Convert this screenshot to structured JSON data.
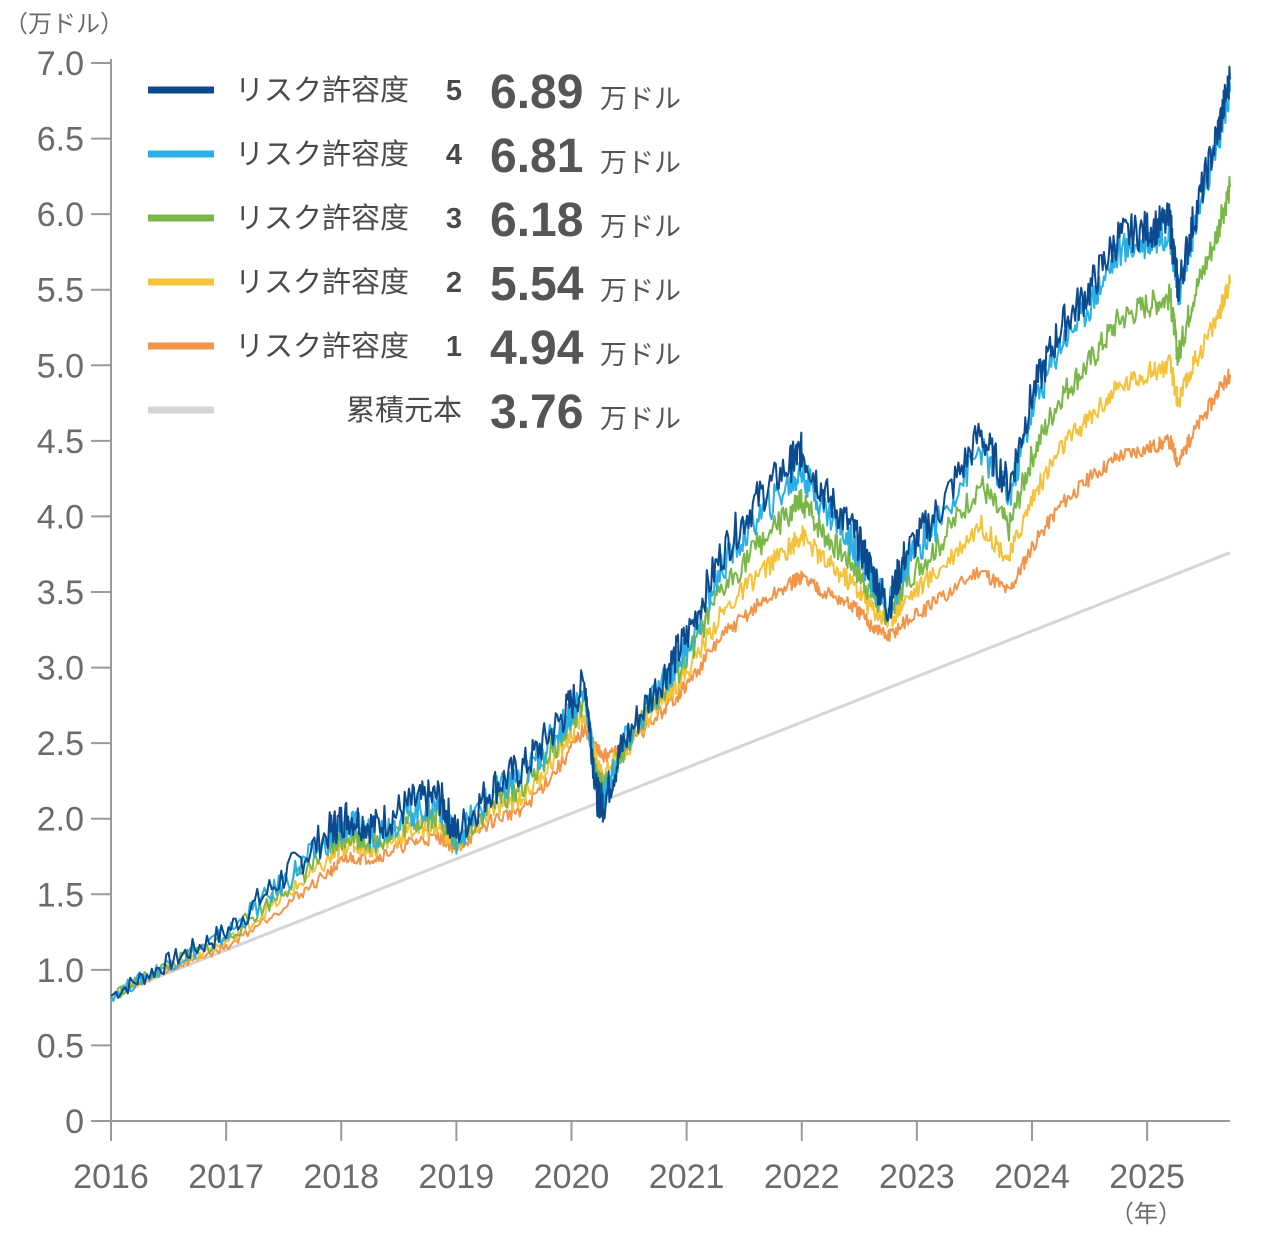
{
  "chart_data": {
    "type": "line",
    "y_unit": "（万ドル）",
    "x_unit": "（年）",
    "ylim": [
      0,
      7.0
    ],
    "y_ticks": [
      "0",
      "0.5",
      "1.0",
      "1.5",
      "2.0",
      "2.5",
      "3.0",
      "3.5",
      "4.0",
      "4.5",
      "5.0",
      "5.5",
      "6.0",
      "6.5",
      "7.0"
    ],
    "x_ticks": [
      "2016",
      "2017",
      "2018",
      "2019",
      "2020",
      "2021",
      "2022",
      "2023",
      "2024",
      "2025"
    ],
    "xlim": [
      2016.0,
      2025.72
    ],
    "legend_unit": "万ドル",
    "grid": false,
    "series": [
      {
        "name": "リスク許容度",
        "level": "5",
        "final_value": "6.89",
        "color": "#0b4a8f",
        "points": [
          [
            2016.0,
            0.83
          ],
          [
            2016.5,
            1.05
          ],
          [
            2017.0,
            1.25
          ],
          [
            2017.5,
            1.62
          ],
          [
            2017.9,
            1.92
          ],
          [
            2018.05,
            2.02
          ],
          [
            2018.3,
            1.95
          ],
          [
            2018.6,
            2.1
          ],
          [
            2018.85,
            2.15
          ],
          [
            2019.0,
            1.9
          ],
          [
            2019.3,
            2.2
          ],
          [
            2019.6,
            2.35
          ],
          [
            2019.9,
            2.65
          ],
          [
            2020.12,
            2.9
          ],
          [
            2020.22,
            2.15
          ],
          [
            2020.28,
            2.1
          ],
          [
            2020.45,
            2.5
          ],
          [
            2020.8,
            2.95
          ],
          [
            2021.0,
            3.2
          ],
          [
            2021.3,
            3.75
          ],
          [
            2021.6,
            4.1
          ],
          [
            2021.9,
            4.35
          ],
          [
            2022.0,
            4.43
          ],
          [
            2022.2,
            4.15
          ],
          [
            2022.45,
            3.9
          ],
          [
            2022.6,
            3.65
          ],
          [
            2022.75,
            3.4
          ],
          [
            2022.9,
            3.75
          ],
          [
            2023.2,
            4.05
          ],
          [
            2023.55,
            4.55
          ],
          [
            2023.8,
            4.2
          ],
          [
            2024.0,
            4.8
          ],
          [
            2024.25,
            5.25
          ],
          [
            2024.5,
            5.5
          ],
          [
            2024.75,
            5.85
          ],
          [
            2025.0,
            5.9
          ],
          [
            2025.2,
            5.95
          ],
          [
            2025.27,
            5.5
          ],
          [
            2025.4,
            5.95
          ],
          [
            2025.6,
            6.5
          ],
          [
            2025.72,
            6.89
          ]
        ]
      },
      {
        "name": "リスク許容度",
        "level": "4",
        "final_value": "6.81",
        "color": "#2ab0e4",
        "points": [
          [
            2016.0,
            0.83
          ],
          [
            2016.5,
            1.04
          ],
          [
            2017.0,
            1.23
          ],
          [
            2017.5,
            1.58
          ],
          [
            2017.9,
            1.87
          ],
          [
            2018.05,
            1.96
          ],
          [
            2018.3,
            1.9
          ],
          [
            2018.6,
            2.05
          ],
          [
            2018.85,
            2.1
          ],
          [
            2019.0,
            1.87
          ],
          [
            2019.3,
            2.15
          ],
          [
            2019.6,
            2.3
          ],
          [
            2019.9,
            2.6
          ],
          [
            2020.12,
            2.85
          ],
          [
            2020.22,
            2.15
          ],
          [
            2020.28,
            2.12
          ],
          [
            2020.45,
            2.48
          ],
          [
            2020.8,
            2.9
          ],
          [
            2021.0,
            3.13
          ],
          [
            2021.3,
            3.65
          ],
          [
            2021.6,
            3.98
          ],
          [
            2021.9,
            4.22
          ],
          [
            2022.0,
            4.3
          ],
          [
            2022.2,
            4.05
          ],
          [
            2022.45,
            3.82
          ],
          [
            2022.6,
            3.6
          ],
          [
            2022.75,
            3.38
          ],
          [
            2022.9,
            3.68
          ],
          [
            2023.2,
            3.98
          ],
          [
            2023.55,
            4.45
          ],
          [
            2023.8,
            4.12
          ],
          [
            2024.0,
            4.7
          ],
          [
            2024.25,
            5.15
          ],
          [
            2024.5,
            5.4
          ],
          [
            2024.75,
            5.75
          ],
          [
            2025.0,
            5.82
          ],
          [
            2025.2,
            5.88
          ],
          [
            2025.27,
            5.45
          ],
          [
            2025.4,
            5.88
          ],
          [
            2025.6,
            6.42
          ],
          [
            2025.72,
            6.81
          ]
        ]
      },
      {
        "name": "リスク許容度",
        "level": "3",
        "final_value": "6.18",
        "color": "#7ab648",
        "points": [
          [
            2016.0,
            0.83
          ],
          [
            2016.5,
            1.03
          ],
          [
            2017.0,
            1.21
          ],
          [
            2017.5,
            1.53
          ],
          [
            2017.9,
            1.8
          ],
          [
            2018.05,
            1.9
          ],
          [
            2018.3,
            1.85
          ],
          [
            2018.6,
            1.98
          ],
          [
            2018.85,
            2.03
          ],
          [
            2019.0,
            1.84
          ],
          [
            2019.3,
            2.1
          ],
          [
            2019.6,
            2.23
          ],
          [
            2019.9,
            2.52
          ],
          [
            2020.12,
            2.78
          ],
          [
            2020.22,
            2.25
          ],
          [
            2020.28,
            2.2
          ],
          [
            2020.45,
            2.46
          ],
          [
            2020.8,
            2.85
          ],
          [
            2021.0,
            3.05
          ],
          [
            2021.3,
            3.5
          ],
          [
            2021.6,
            3.8
          ],
          [
            2021.9,
            4.02
          ],
          [
            2022.0,
            4.1
          ],
          [
            2022.2,
            3.88
          ],
          [
            2022.45,
            3.68
          ],
          [
            2022.6,
            3.5
          ],
          [
            2022.75,
            3.35
          ],
          [
            2022.9,
            3.58
          ],
          [
            2023.2,
            3.82
          ],
          [
            2023.55,
            4.22
          ],
          [
            2023.8,
            3.92
          ],
          [
            2024.0,
            4.4
          ],
          [
            2024.25,
            4.8
          ],
          [
            2024.5,
            5.02
          ],
          [
            2024.75,
            5.3
          ],
          [
            2025.0,
            5.4
          ],
          [
            2025.2,
            5.45
          ],
          [
            2025.27,
            5.05
          ],
          [
            2025.4,
            5.45
          ],
          [
            2025.6,
            5.85
          ],
          [
            2025.72,
            6.18
          ]
        ]
      },
      {
        "name": "リスク許容度",
        "level": "2",
        "final_value": "5.54",
        "color": "#f5c33b",
        "points": [
          [
            2016.0,
            0.83
          ],
          [
            2016.5,
            1.02
          ],
          [
            2017.0,
            1.18
          ],
          [
            2017.5,
            1.48
          ],
          [
            2017.9,
            1.73
          ],
          [
            2018.05,
            1.83
          ],
          [
            2018.3,
            1.8
          ],
          [
            2018.6,
            1.92
          ],
          [
            2018.85,
            1.96
          ],
          [
            2019.0,
            1.82
          ],
          [
            2019.3,
            2.05
          ],
          [
            2019.6,
            2.16
          ],
          [
            2019.9,
            2.45
          ],
          [
            2020.12,
            2.7
          ],
          [
            2020.22,
            2.35
          ],
          [
            2020.28,
            2.3
          ],
          [
            2020.45,
            2.44
          ],
          [
            2020.8,
            2.8
          ],
          [
            2021.0,
            2.97
          ],
          [
            2021.3,
            3.35
          ],
          [
            2021.6,
            3.6
          ],
          [
            2021.9,
            3.8
          ],
          [
            2022.0,
            3.88
          ],
          [
            2022.2,
            3.7
          ],
          [
            2022.45,
            3.55
          ],
          [
            2022.6,
            3.4
          ],
          [
            2022.75,
            3.3
          ],
          [
            2022.9,
            3.45
          ],
          [
            2023.2,
            3.65
          ],
          [
            2023.55,
            3.95
          ],
          [
            2023.8,
            3.72
          ],
          [
            2024.0,
            4.12
          ],
          [
            2024.25,
            4.45
          ],
          [
            2024.5,
            4.65
          ],
          [
            2024.75,
            4.85
          ],
          [
            2025.0,
            4.95
          ],
          [
            2025.2,
            5.0
          ],
          [
            2025.27,
            4.75
          ],
          [
            2025.4,
            5.0
          ],
          [
            2025.6,
            5.3
          ],
          [
            2025.72,
            5.54
          ]
        ]
      },
      {
        "name": "リスク許容度",
        "level": "1",
        "final_value": "4.94",
        "color": "#f2954a",
        "points": [
          [
            2016.0,
            0.83
          ],
          [
            2016.5,
            1.0
          ],
          [
            2017.0,
            1.15
          ],
          [
            2017.5,
            1.42
          ],
          [
            2017.9,
            1.65
          ],
          [
            2018.05,
            1.74
          ],
          [
            2018.3,
            1.74
          ],
          [
            2018.6,
            1.84
          ],
          [
            2018.85,
            1.88
          ],
          [
            2019.0,
            1.8
          ],
          [
            2019.3,
            1.98
          ],
          [
            2019.6,
            2.08
          ],
          [
            2019.9,
            2.35
          ],
          [
            2020.12,
            2.6
          ],
          [
            2020.22,
            2.45
          ],
          [
            2020.28,
            2.42
          ],
          [
            2020.45,
            2.45
          ],
          [
            2020.8,
            2.72
          ],
          [
            2021.0,
            2.88
          ],
          [
            2021.3,
            3.2
          ],
          [
            2021.6,
            3.4
          ],
          [
            2021.9,
            3.55
          ],
          [
            2022.0,
            3.6
          ],
          [
            2022.2,
            3.5
          ],
          [
            2022.45,
            3.4
          ],
          [
            2022.6,
            3.28
          ],
          [
            2022.75,
            3.2
          ],
          [
            2022.9,
            3.3
          ],
          [
            2023.2,
            3.45
          ],
          [
            2023.55,
            3.65
          ],
          [
            2023.8,
            3.5
          ],
          [
            2024.0,
            3.8
          ],
          [
            2024.25,
            4.08
          ],
          [
            2024.5,
            4.25
          ],
          [
            2024.75,
            4.4
          ],
          [
            2025.0,
            4.45
          ],
          [
            2025.2,
            4.5
          ],
          [
            2025.27,
            4.35
          ],
          [
            2025.4,
            4.55
          ],
          [
            2025.6,
            4.8
          ],
          [
            2025.72,
            4.94
          ]
        ]
      },
      {
        "name": "累積元本",
        "level": "",
        "final_value": "3.76",
        "color": "#d5d5d5",
        "points": [
          [
            2016.0,
            0.83
          ],
          [
            2025.72,
            3.76
          ]
        ]
      }
    ]
  }
}
